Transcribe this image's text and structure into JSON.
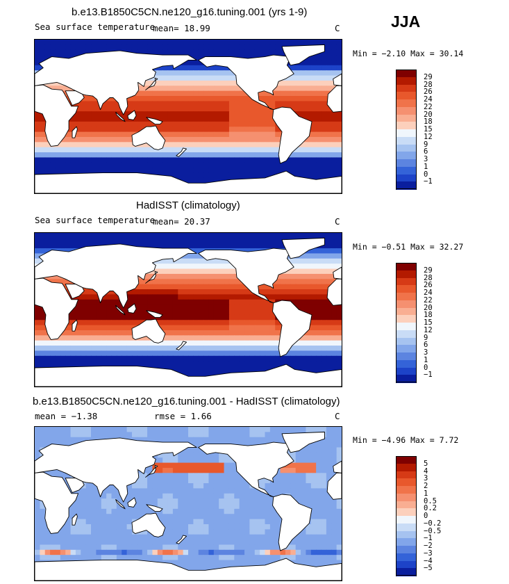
{
  "season": "JJA",
  "panels": [
    {
      "title": "b.e13.B1850C5CN.ne120_g16.tuning.001 (yrs 1-9)",
      "left_text": "Sea surface temperature",
      "stat_text": "mean=   18.99",
      "units": "C",
      "minmax": "Min =  −2.10 Max =  30.14",
      "field": "model",
      "colorbar": {
        "labels": [
          "29",
          "28",
          "26",
          "24",
          "22",
          "20",
          "18",
          "15",
          "12",
          "9",
          "6",
          "3",
          "1",
          "0",
          "−1"
        ],
        "colors": [
          "#7f0000",
          "#b31a00",
          "#d63a16",
          "#e8582c",
          "#f0734a",
          "#f59070",
          "#f9ae92",
          "#fcd0bc",
          "#f0f6fc",
          "#c9dcf6",
          "#a6c3f0",
          "#82a6ea",
          "#5c84e0",
          "#3463d8",
          "#1d43c8",
          "#0a1e9e"
        ]
      }
    },
    {
      "title": "HadISST (climatology)",
      "left_text": "Sea surface temperature",
      "stat_text": "mean=   20.37",
      "units": "C",
      "minmax": "Min =  −0.51 Max =  32.27",
      "field": "obs",
      "colorbar": {
        "labels": [
          "29",
          "28",
          "26",
          "24",
          "22",
          "20",
          "18",
          "15",
          "12",
          "9",
          "6",
          "3",
          "1",
          "0",
          "−1"
        ],
        "colors": [
          "#7f0000",
          "#b31a00",
          "#d63a16",
          "#e8582c",
          "#f0734a",
          "#f59070",
          "#f9ae92",
          "#fcd0bc",
          "#f0f6fc",
          "#c9dcf6",
          "#a6c3f0",
          "#82a6ea",
          "#5c84e0",
          "#3463d8",
          "#1d43c8",
          "#0a1e9e"
        ]
      }
    },
    {
      "title": "b.e13.B1850C5CN.ne120_g16.tuning.001 - HadISST (climatology)",
      "left_text": "mean =   −1.38",
      "stat_text": "rmse =    1.66",
      "units": "C",
      "minmax": "Min =  −4.96 Max =   7.72",
      "field": "diff",
      "colorbar": {
        "labels": [
          "5",
          "4",
          "3",
          "2",
          "1",
          "0.5",
          "0.2",
          "0",
          "−0.2",
          "−0.5",
          "−1",
          "−2",
          "−3",
          "−4",
          "−5"
        ],
        "colors": [
          "#7f0000",
          "#b31a00",
          "#d63a16",
          "#e8582c",
          "#f0734a",
          "#f59070",
          "#f9ae92",
          "#fcd0bc",
          "#f0f6fc",
          "#c9dcf6",
          "#a6c3f0",
          "#82a6ea",
          "#5c84e0",
          "#3463d8",
          "#1d43c8",
          "#0a1e9e"
        ]
      }
    }
  ]
}
